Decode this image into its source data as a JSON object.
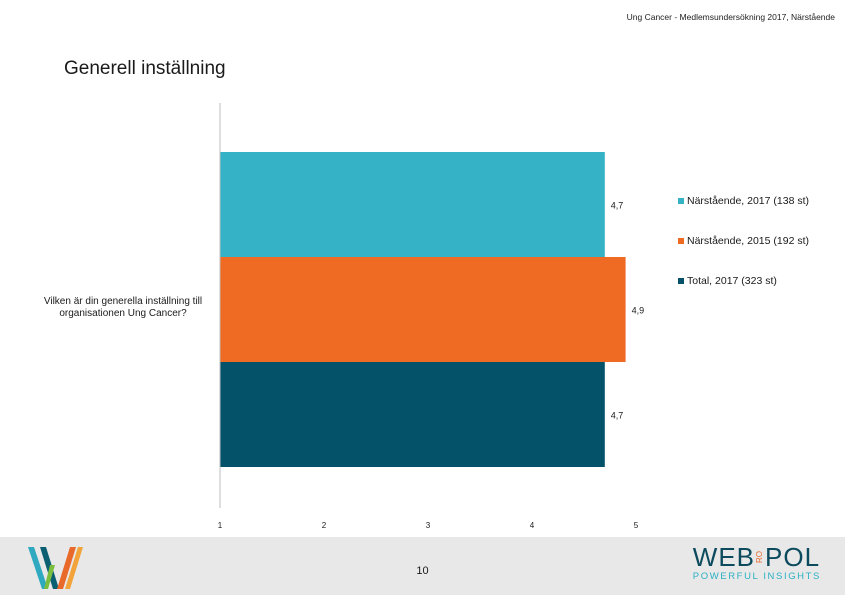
{
  "header": {
    "text": "Ung Cancer - Medlemsundersökning 2017, Närstående"
  },
  "chart_data": {
    "type": "bar",
    "orientation": "horizontal",
    "title": "Generell inställning",
    "categories": [
      "Vilken är din generella inställning till organisationen Ung Cancer?"
    ],
    "series": [
      {
        "name": "Närstående, 2017 (138 st)",
        "values": [
          4.7
        ],
        "value_label": "4,7",
        "color": "#35b2c6"
      },
      {
        "name": "Närstående, 2015 (192 st)",
        "values": [
          4.9
        ],
        "value_label": "4,9",
        "color": "#ef6b24"
      },
      {
        "name": "Total, 2017 (323 st)",
        "values": [
          4.7
        ],
        "value_label": "4,7",
        "color": "#03526a"
      }
    ],
    "xlim": [
      1,
      5
    ],
    "xticks": [
      "1",
      "2",
      "3",
      "4",
      "5"
    ],
    "grid": false,
    "legend_position": "right"
  },
  "footer": {
    "page_number": "10",
    "brand_left": "WEB",
    "brand_mid": "RO",
    "brand_right": "POL",
    "tagline": "POWERFUL INSIGHTS"
  }
}
